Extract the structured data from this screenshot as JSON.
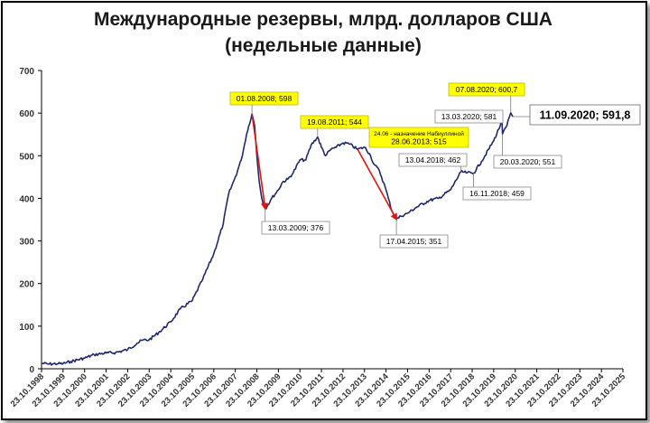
{
  "title_line1": "Международные резервы, млрд. долларов США",
  "title_line2": "(недельные данные)",
  "chart_data": {
    "type": "line",
    "title": "Международные резервы, млрд. долларов США",
    "subtitle": "(недельные данные)",
    "ylim": [
      0,
      700
    ],
    "yticks": [
      0,
      100,
      200,
      300,
      400,
      500,
      600,
      700
    ],
    "xticks": [
      "23.10.1998",
      "23.10.1999",
      "23.10.2000",
      "23.10.2001",
      "23.10.2002",
      "23.10.2003",
      "23.10.2004",
      "23.10.2005",
      "23.10.2006",
      "23.10.2007",
      "23.10.2008",
      "23.10.2009",
      "23.10.2010",
      "23.10.2011",
      "23.10.2012",
      "23.10.2013",
      "23.10.2014",
      "23.10.2015",
      "23.10.2016",
      "23.10.2017",
      "23.10.2018",
      "23.10.2019",
      "23.10.2020",
      "23.10.2021",
      "23.10.2022",
      "23.10.2023",
      "23.10.2024",
      "23.10.2025"
    ],
    "grid": false,
    "line_color": "#1f2a6e",
    "series": [
      {
        "points": [
          [
            "1998-10-23",
            13
          ],
          [
            "1999-03-01",
            11
          ],
          [
            "1999-08-01",
            12
          ],
          [
            "1999-10-23",
            12
          ],
          [
            "2000-03-01",
            17
          ],
          [
            "2000-10-23",
            25
          ],
          [
            "2001-04-01",
            33
          ],
          [
            "2001-10-23",
            37
          ],
          [
            "2002-04-01",
            38
          ],
          [
            "2002-10-23",
            45
          ],
          [
            "2003-04-01",
            60
          ],
          [
            "2003-07-01",
            67
          ],
          [
            "2003-10-23",
            68
          ],
          [
            "2004-04-01",
            85
          ],
          [
            "2004-10-23",
            110
          ],
          [
            "2005-04-01",
            140
          ],
          [
            "2005-10-23",
            160
          ],
          [
            "2006-04-01",
            205
          ],
          [
            "2006-10-23",
            270
          ],
          [
            "2007-04-01",
            340
          ],
          [
            "2007-07-01",
            410
          ],
          [
            "2007-10-23",
            450
          ],
          [
            "2008-02-01",
            490
          ],
          [
            "2008-05-01",
            550
          ],
          [
            "2008-08-01",
            598
          ],
          [
            "2008-09-15",
            570
          ],
          [
            "2008-10-23",
            500
          ],
          [
            "2008-12-01",
            440
          ],
          [
            "2009-01-15",
            400
          ],
          [
            "2009-03-13",
            376
          ],
          [
            "2009-05-01",
            385
          ],
          [
            "2009-07-01",
            400
          ],
          [
            "2009-10-23",
            420
          ],
          [
            "2010-01-01",
            438
          ],
          [
            "2010-04-01",
            445
          ],
          [
            "2010-07-01",
            460
          ],
          [
            "2010-10-23",
            490
          ],
          [
            "2011-02-01",
            490
          ],
          [
            "2011-05-01",
            525
          ],
          [
            "2011-08-19",
            544
          ],
          [
            "2011-10-23",
            520
          ],
          [
            "2012-01-01",
            500
          ],
          [
            "2012-04-01",
            515
          ],
          [
            "2012-07-01",
            520
          ],
          [
            "2012-10-23",
            530
          ],
          [
            "2013-02-01",
            528
          ],
          [
            "2013-06-28",
            515
          ],
          [
            "2013-10-23",
            520
          ],
          [
            "2014-01-15",
            505
          ],
          [
            "2014-04-01",
            480
          ],
          [
            "2014-07-01",
            465
          ],
          [
            "2014-10-23",
            420
          ],
          [
            "2014-12-01",
            400
          ],
          [
            "2015-02-01",
            370
          ],
          [
            "2015-04-17",
            351
          ],
          [
            "2015-07-01",
            358
          ],
          [
            "2015-10-23",
            365
          ],
          [
            "2016-04-01",
            380
          ],
          [
            "2016-10-23",
            395
          ],
          [
            "2017-04-01",
            400
          ],
          [
            "2017-10-23",
            420
          ],
          [
            "2018-04-13",
            462
          ],
          [
            "2018-08-01",
            460
          ],
          [
            "2018-11-16",
            459
          ],
          [
            "2019-04-01",
            487
          ],
          [
            "2019-10-23",
            535
          ],
          [
            "2020-03-13",
            581
          ],
          [
            "2020-03-20",
            551
          ],
          [
            "2020-06-01",
            570
          ],
          [
            "2020-08-07",
            600.7
          ],
          [
            "2020-09-11",
            591.8
          ]
        ]
      }
    ],
    "annotations": [
      {
        "text": "01.08.2008; 598",
        "date": "2008-08-01",
        "value": 598,
        "style": "yellow"
      },
      {
        "text": "19.08.2011; 544",
        "date": "2011-08-19",
        "value": 544,
        "style": "yellow"
      },
      {
        "text": "07.08.2020; 600,7",
        "date": "2020-08-07",
        "value": 600.7,
        "style": "yellow"
      },
      {
        "text": "24.06 - назначение Набиуллиной\n28.06.2013; 515",
        "date": "2013-06-28",
        "value": 515,
        "style": "yellow"
      },
      {
        "text": "13.03.2009; 376",
        "date": "2009-03-13",
        "value": 376,
        "style": "white"
      },
      {
        "text": "17.04.2015; 351",
        "date": "2015-04-17",
        "value": 351,
        "style": "white"
      },
      {
        "text": "13.04.2018; 462",
        "date": "2018-04-13",
        "value": 462,
        "style": "white"
      },
      {
        "text": "16.11.2018; 459",
        "date": "2018-11-16",
        "value": 459,
        "style": "white"
      },
      {
        "text": "13.03.2020; 581",
        "date": "2020-03-13",
        "value": 581,
        "style": "white"
      },
      {
        "text": "20.03.2020; 551",
        "date": "2020-03-20",
        "value": 551,
        "style": "white"
      },
      {
        "text": "11.09.2020; 591,8",
        "date": "2020-09-11",
        "value": 591.8,
        "style": "big"
      }
    ],
    "arrows": [
      {
        "from": [
          "2008-08-01",
          598
        ],
        "to": [
          "2009-03-13",
          376
        ],
        "color": "#e8120c"
      },
      {
        "from": [
          "2013-06-28",
          515
        ],
        "to": [
          "2015-04-17",
          351
        ],
        "color": "#e8120c"
      }
    ]
  }
}
